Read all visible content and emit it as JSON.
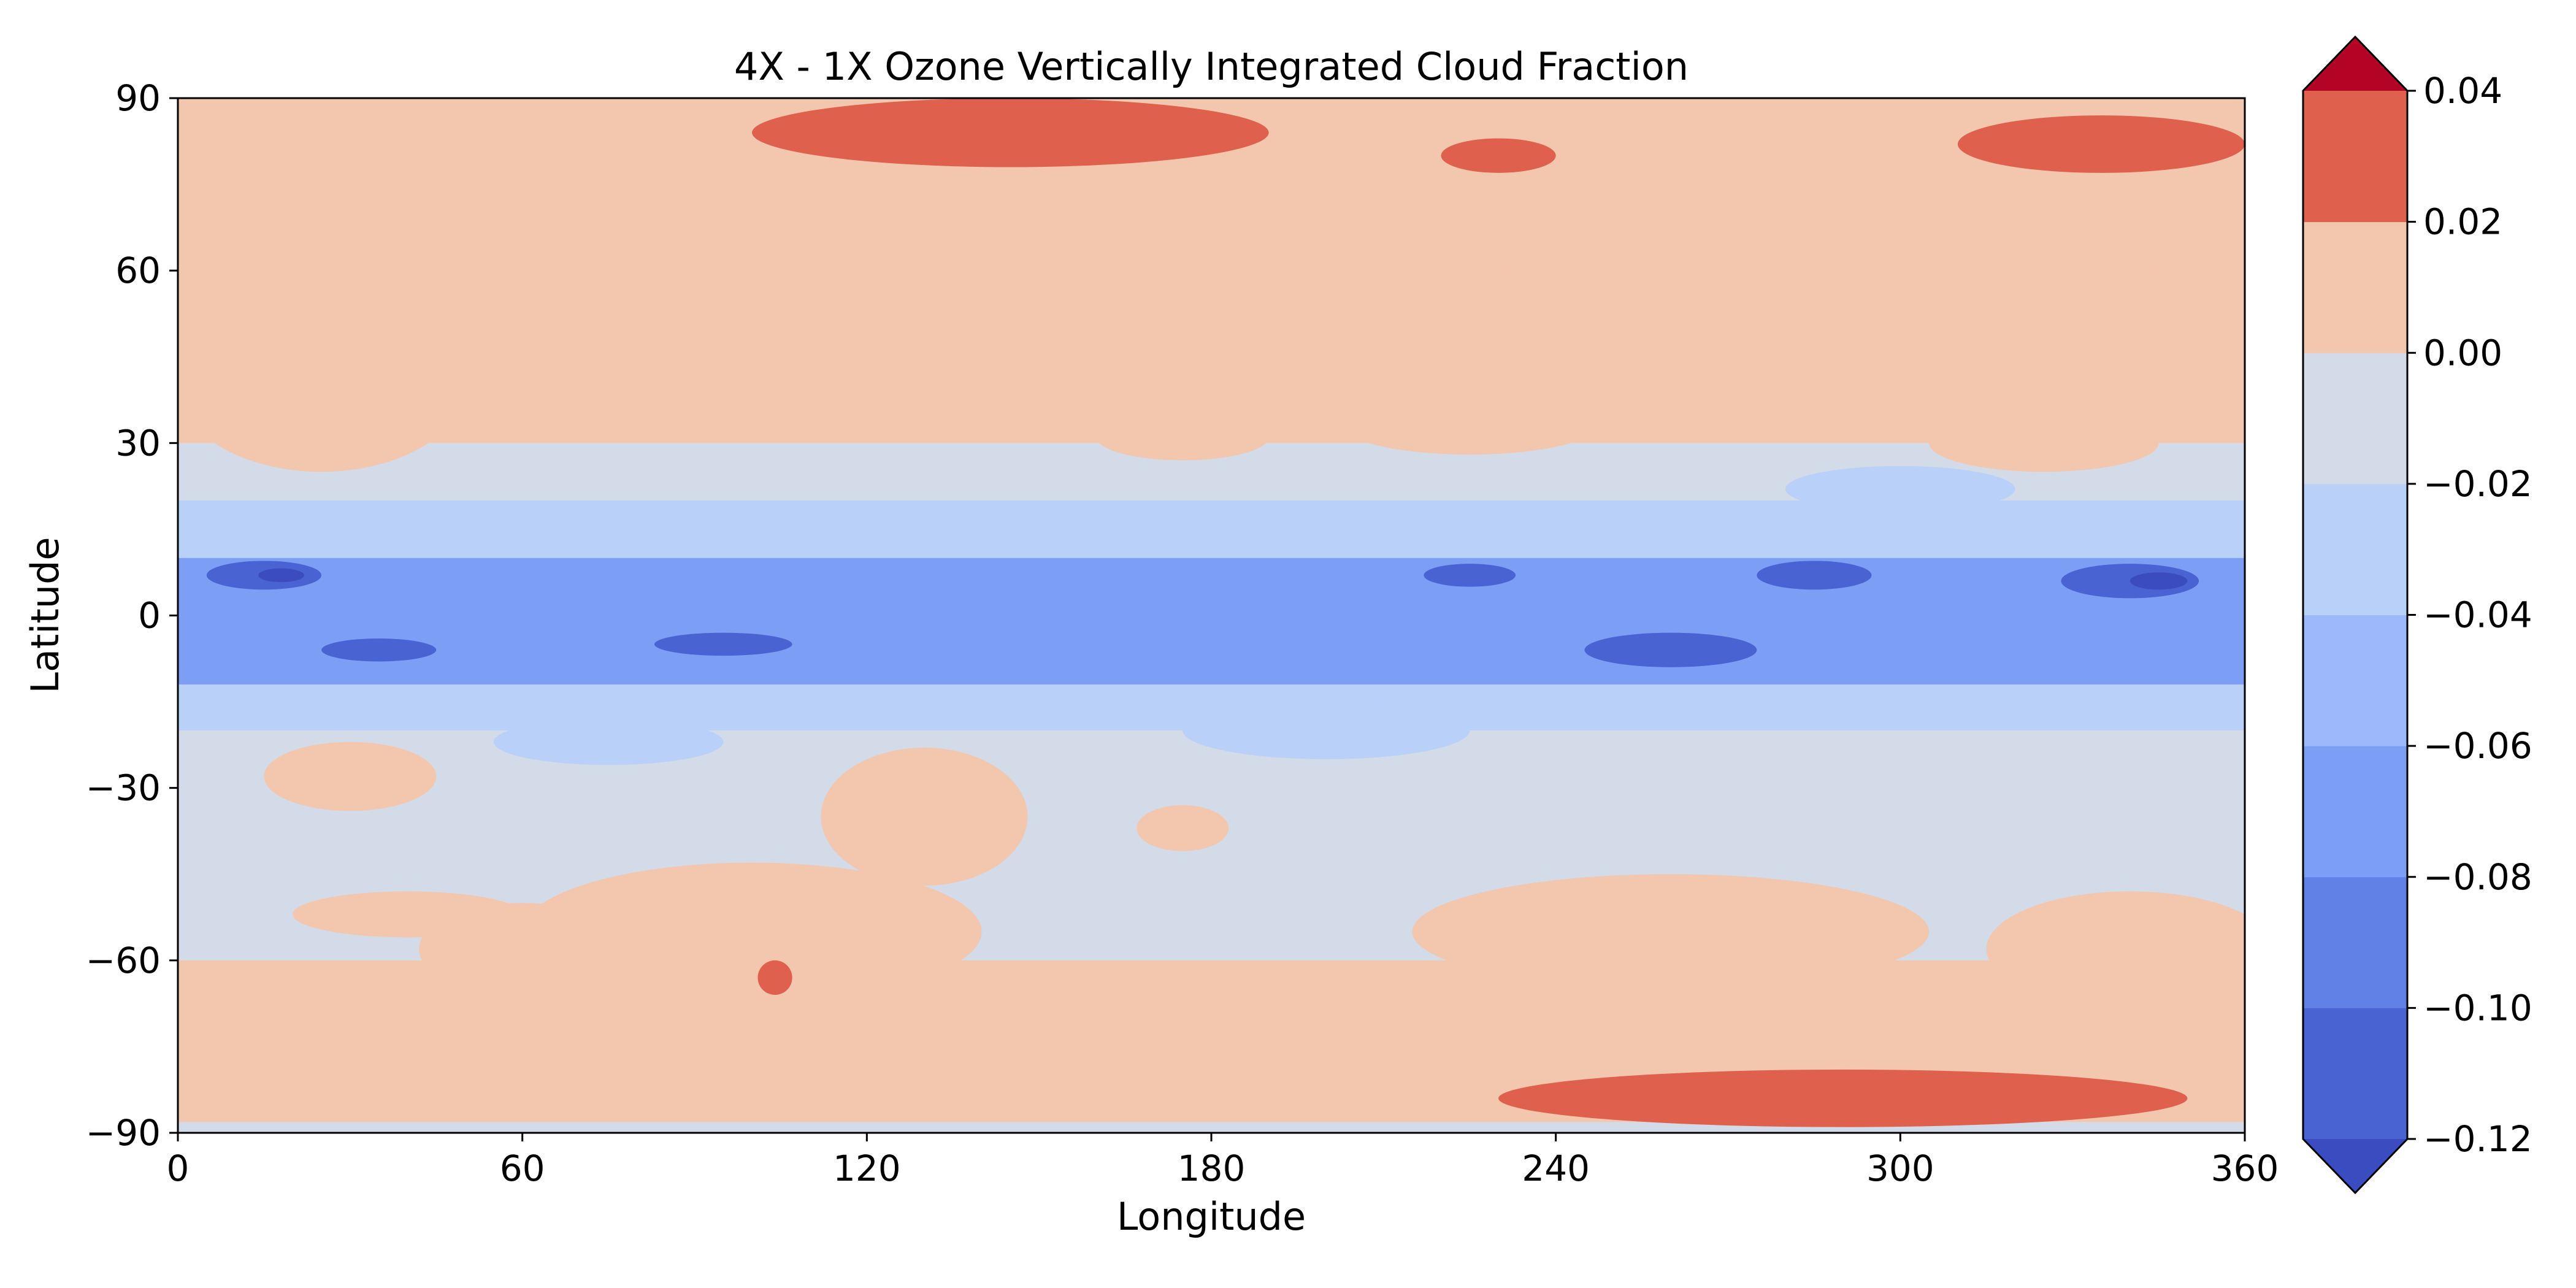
{
  "chart_data": {
    "type": "heatmap",
    "title": "4X - 1X Ozone Vertically Integrated Cloud Fraction",
    "xlabel": "Longitude",
    "ylabel": "Latitude",
    "xlim": [
      0,
      360
    ],
    "ylim": [
      -90,
      90
    ],
    "xticks": [
      "0",
      "60",
      "120",
      "180",
      "240",
      "300",
      "360"
    ],
    "yticks": [
      "90",
      "60",
      "30",
      "0",
      "−30",
      "−60",
      "−90"
    ],
    "grid": false,
    "colorbar": {
      "ticks": [
        "0.04",
        "0.02",
        "0.00",
        "−0.02",
        "−0.04",
        "−0.06",
        "−0.08",
        "−0.10",
        "−0.12"
      ],
      "levels": [
        -0.12,
        -0.1,
        -0.08,
        -0.06,
        -0.04,
        -0.02,
        0.0,
        0.02,
        0.04
      ],
      "extend": "both",
      "colors": [
        "#3b4cc0",
        "#4a63d3",
        "#6181e6",
        "#7d9ef5",
        "#9db9fc",
        "#b9d0f9",
        "#d2dbe7",
        "#f3c6ae",
        "#de604d",
        "#b40426"
      ]
    },
    "lat_profile": [
      {
        "lat": 90,
        "value": 0.025
      },
      {
        "lat": 80,
        "value": 0.012
      },
      {
        "lat": 60,
        "value": 0.0
      },
      {
        "lat": 30,
        "value": 0.0
      },
      {
        "lat": 20,
        "value": -0.025
      },
      {
        "lat": 10,
        "value": -0.05
      },
      {
        "lat": 4,
        "value": -0.085
      },
      {
        "lat": 0,
        "value": -0.07
      },
      {
        "lat": -6,
        "value": -0.09
      },
      {
        "lat": -12,
        "value": -0.05
      },
      {
        "lat": -20,
        "value": -0.01
      },
      {
        "lat": -60,
        "value": 0.0
      },
      {
        "lat": -75,
        "value": 0.01
      },
      {
        "lat": -88,
        "value": 0.025
      }
    ]
  }
}
